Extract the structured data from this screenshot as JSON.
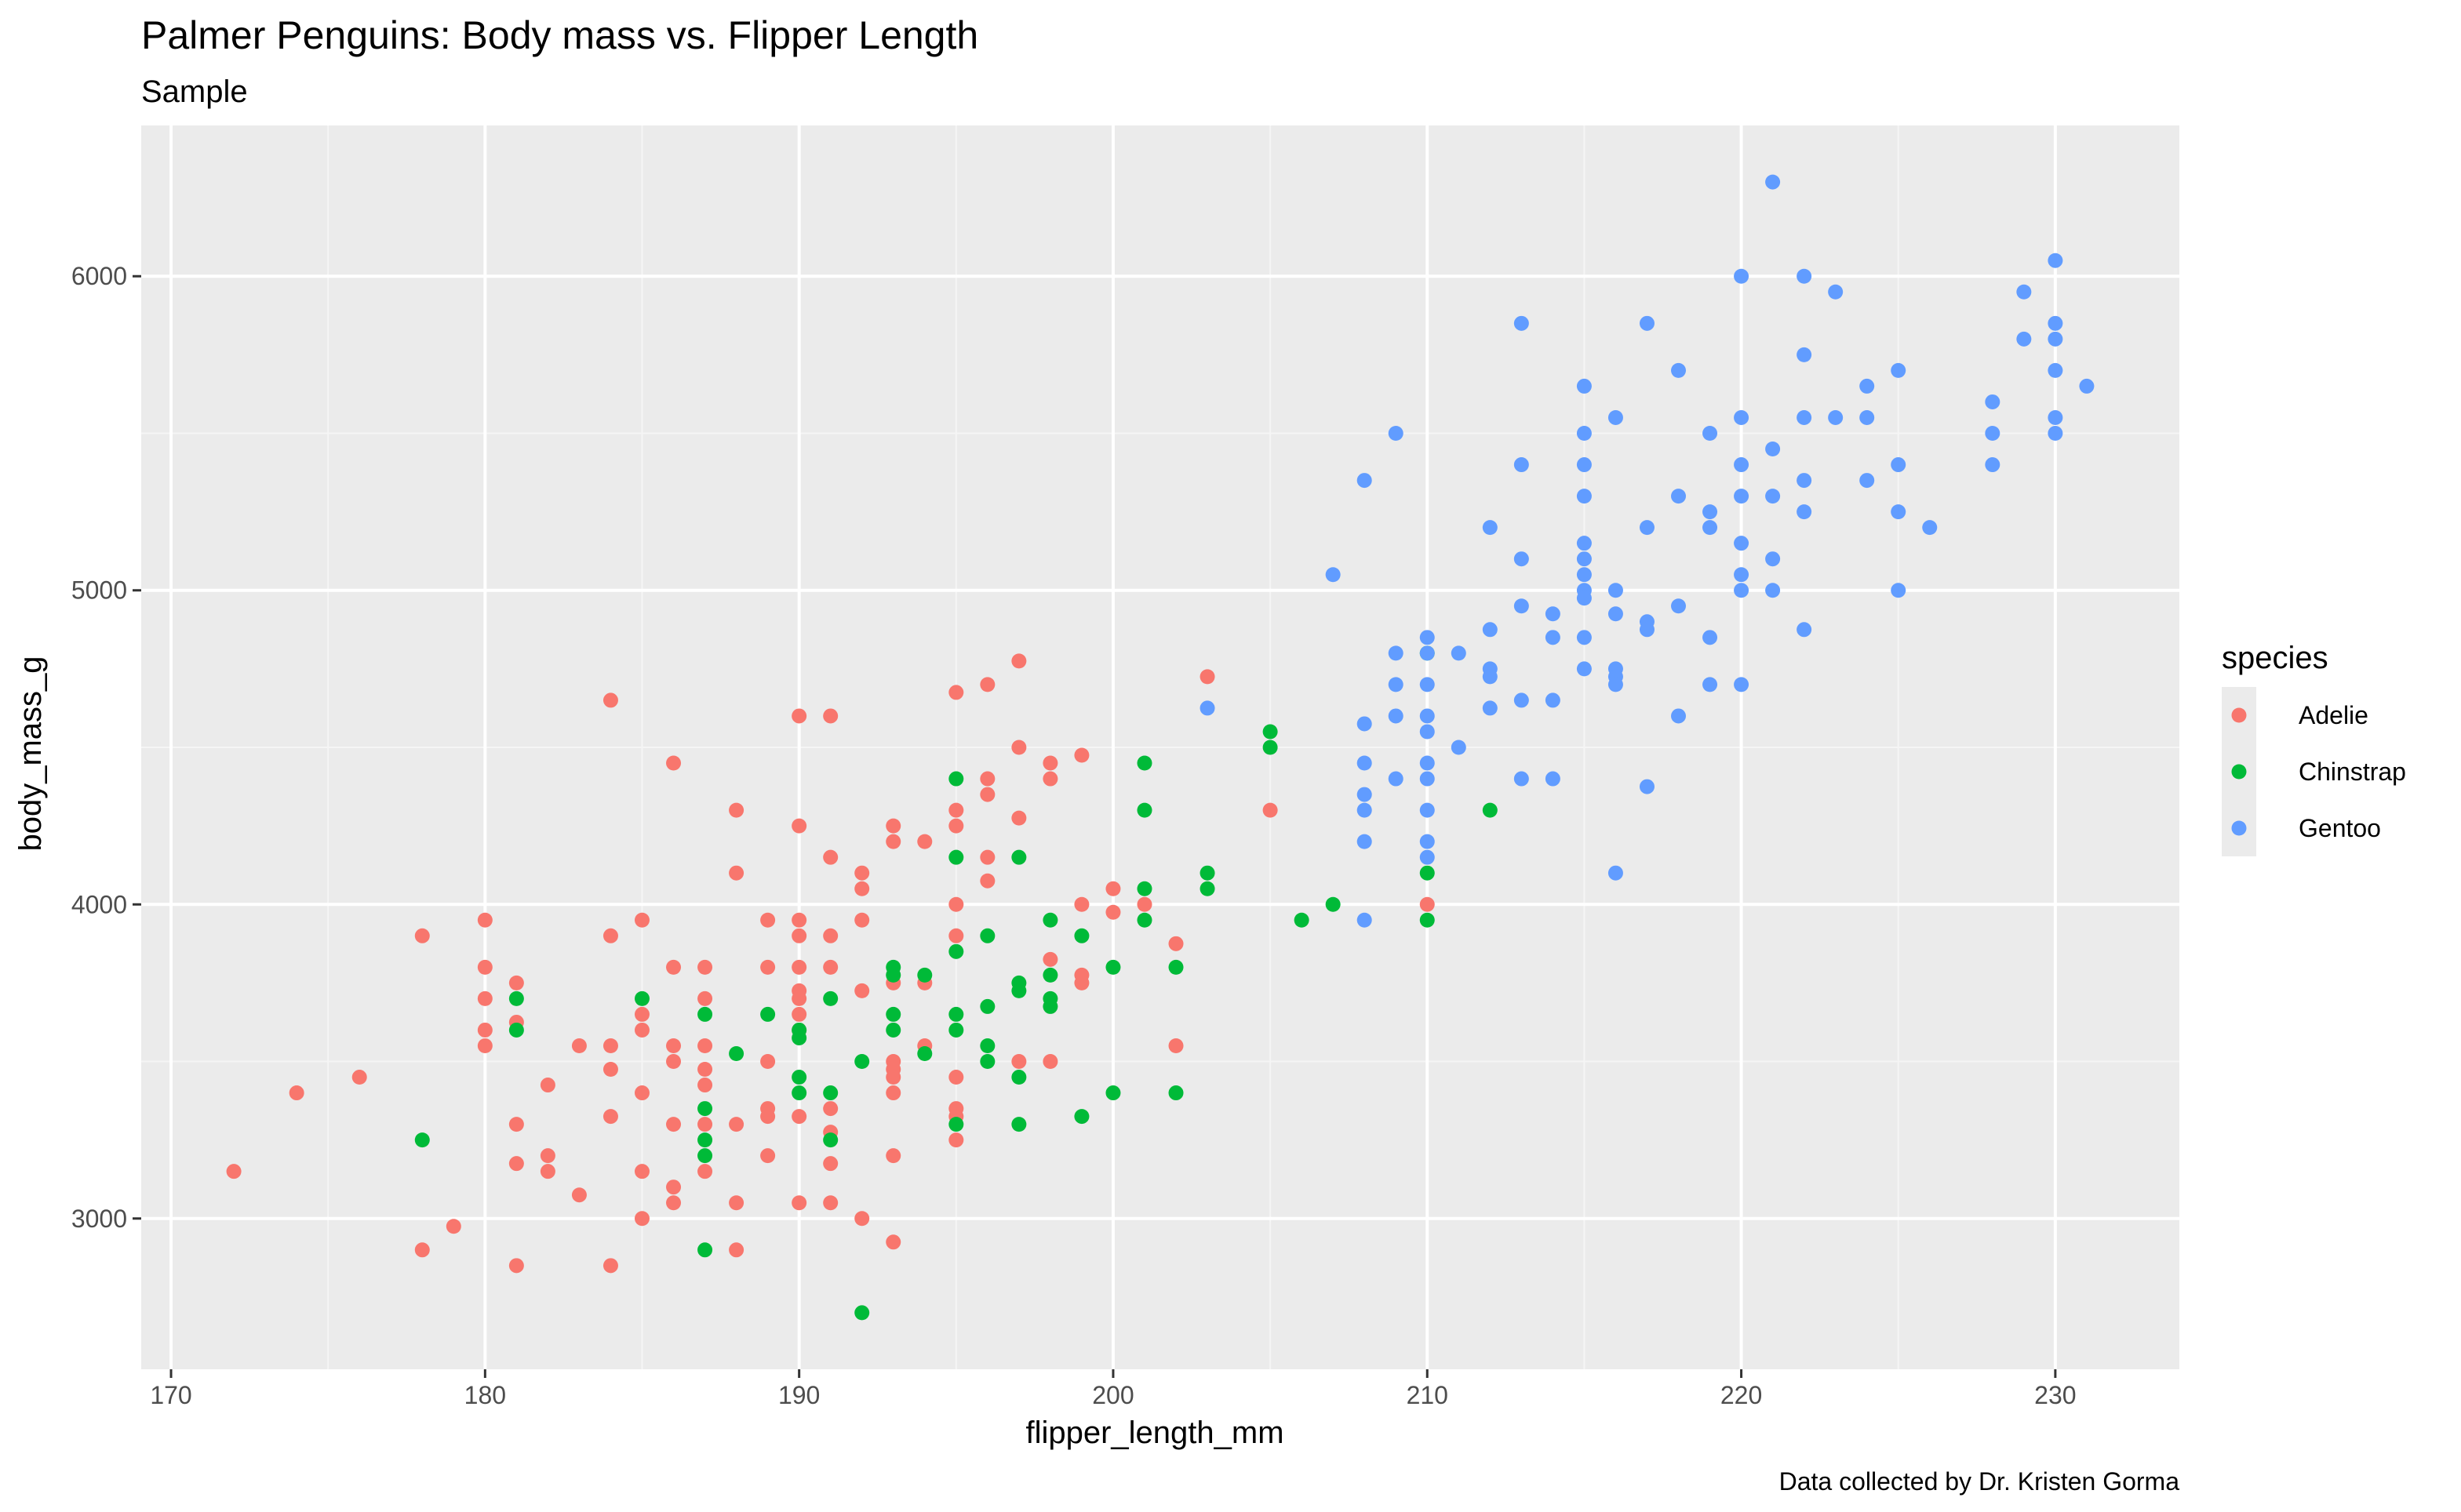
{
  "chart_data": {
    "type": "scatter",
    "title": "Palmer Penguins: Body mass vs. Flipper Length",
    "subtitle": "Sample",
    "caption": "Data collected by Dr. Kristen Gorma",
    "xlabel": "flipper_length_mm",
    "ylabel": "body_mass_g",
    "xlim": [
      169.05,
      233.95
    ],
    "ylim": [
      2520,
      6480
    ],
    "x_ticks": [
      170,
      180,
      190,
      200,
      210,
      220,
      230
    ],
    "y_ticks": [
      3000,
      4000,
      5000,
      6000
    ],
    "grid": true,
    "legend": {
      "title": "species",
      "position": "right",
      "entries": [
        "Adelie",
        "Chinstrap",
        "Gentoo"
      ]
    },
    "colors": {
      "Adelie": "#F8766D",
      "Chinstrap": "#00BA38",
      "Gentoo": "#619CFF",
      "panel_background": "#EBEBEB",
      "grid_major": "#FFFFFF",
      "grid_minor": "#F5F5F5"
    },
    "series": [
      {
        "name": "Adelie",
        "points": [
          [
            172,
            3150
          ],
          [
            174,
            3400
          ],
          [
            176,
            3450
          ],
          [
            178,
            3900
          ],
          [
            178,
            2900
          ],
          [
            179,
            2975
          ],
          [
            180,
            3950
          ],
          [
            180,
            3800
          ],
          [
            180,
            3700
          ],
          [
            180,
            3600
          ],
          [
            180,
            3550
          ],
          [
            181,
            3750
          ],
          [
            181,
            3625
          ],
          [
            181,
            3300
          ],
          [
            181,
            3175
          ],
          [
            181,
            2850
          ],
          [
            182,
            3425
          ],
          [
            182,
            3200
          ],
          [
            182,
            3150
          ],
          [
            183,
            3550
          ],
          [
            183,
            3075
          ],
          [
            184,
            4650
          ],
          [
            184,
            3900
          ],
          [
            184,
            3550
          ],
          [
            184,
            3475
          ],
          [
            184,
            3325
          ],
          [
            184,
            2850
          ],
          [
            185,
            3950
          ],
          [
            185,
            3650
          ],
          [
            185,
            3600
          ],
          [
            185,
            3400
          ],
          [
            185,
            3150
          ],
          [
            185,
            3000
          ],
          [
            186,
            4450
          ],
          [
            186,
            3800
          ],
          [
            186,
            3550
          ],
          [
            186,
            3500
          ],
          [
            186,
            3300
          ],
          [
            186,
            3100
          ],
          [
            186,
            3050
          ],
          [
            187,
            3800
          ],
          [
            187,
            3700
          ],
          [
            187,
            3550
          ],
          [
            187,
            3475
          ],
          [
            187,
            3425
          ],
          [
            187,
            3300
          ],
          [
            187,
            3150
          ],
          [
            188,
            4300
          ],
          [
            188,
            4100
          ],
          [
            188,
            3300
          ],
          [
            188,
            3050
          ],
          [
            188,
            2900
          ],
          [
            189,
            3950
          ],
          [
            189,
            3800
          ],
          [
            189,
            3500
          ],
          [
            189,
            3350
          ],
          [
            189,
            3325
          ],
          [
            189,
            3200
          ],
          [
            190,
            4600
          ],
          [
            190,
            4250
          ],
          [
            190,
            3950
          ],
          [
            190,
            3900
          ],
          [
            190,
            3800
          ],
          [
            190,
            3725
          ],
          [
            190,
            3700
          ],
          [
            190,
            3650
          ],
          [
            190,
            3600
          ],
          [
            190,
            3325
          ],
          [
            190,
            3050
          ],
          [
            191,
            4600
          ],
          [
            191,
            4150
          ],
          [
            191,
            3900
          ],
          [
            191,
            3800
          ],
          [
            191,
            3350
          ],
          [
            191,
            3275
          ],
          [
            191,
            3175
          ],
          [
            191,
            3050
          ],
          [
            192,
            4100
          ],
          [
            192,
            4050
          ],
          [
            192,
            3950
          ],
          [
            192,
            3725
          ],
          [
            192,
            3000
          ],
          [
            193,
            4250
          ],
          [
            193,
            4200
          ],
          [
            193,
            3750
          ],
          [
            193,
            3500
          ],
          [
            193,
            3475
          ],
          [
            193,
            3450
          ],
          [
            193,
            3400
          ],
          [
            193,
            3200
          ],
          [
            193,
            2925
          ],
          [
            194,
            4200
          ],
          [
            194,
            3750
          ],
          [
            194,
            3550
          ],
          [
            195,
            4675
          ],
          [
            195,
            4300
          ],
          [
            195,
            4250
          ],
          [
            195,
            4000
          ],
          [
            195,
            3900
          ],
          [
            195,
            3450
          ],
          [
            195,
            3350
          ],
          [
            195,
            3325
          ],
          [
            195,
            3250
          ],
          [
            196,
            4700
          ],
          [
            196,
            4400
          ],
          [
            196,
            4350
          ],
          [
            196,
            4150
          ],
          [
            196,
            4075
          ],
          [
            197,
            4775
          ],
          [
            197,
            4500
          ],
          [
            197,
            4275
          ],
          [
            197,
            3500
          ],
          [
            198,
            4450
          ],
          [
            198,
            4400
          ],
          [
            198,
            3825
          ],
          [
            198,
            3500
          ],
          [
            199,
            4475
          ],
          [
            199,
            4000
          ],
          [
            199,
            3775
          ],
          [
            199,
            3750
          ],
          [
            200,
            4050
          ],
          [
            200,
            3975
          ],
          [
            201,
            4000
          ],
          [
            202,
            3875
          ],
          [
            202,
            3550
          ],
          [
            203,
            4725
          ],
          [
            205,
            4300
          ],
          [
            210,
            4000
          ]
        ]
      },
      {
        "name": "Chinstrap",
        "points": [
          [
            178,
            3250
          ],
          [
            181,
            3700
          ],
          [
            181,
            3600
          ],
          [
            185,
            3700
          ],
          [
            187,
            3650
          ],
          [
            187,
            3350
          ],
          [
            187,
            3250
          ],
          [
            187,
            3200
          ],
          [
            187,
            2900
          ],
          [
            188,
            3525
          ],
          [
            189,
            3650
          ],
          [
            190,
            3600
          ],
          [
            190,
            3575
          ],
          [
            190,
            3450
          ],
          [
            190,
            3400
          ],
          [
            191,
            3700
          ],
          [
            191,
            3400
          ],
          [
            191,
            3250
          ],
          [
            192,
            3500
          ],
          [
            192,
            2700
          ],
          [
            193,
            3800
          ],
          [
            193,
            3775
          ],
          [
            193,
            3650
          ],
          [
            193,
            3600
          ],
          [
            194,
            3775
          ],
          [
            194,
            3525
          ],
          [
            195,
            4400
          ],
          [
            195,
            4150
          ],
          [
            195,
            3850
          ],
          [
            195,
            3650
          ],
          [
            195,
            3600
          ],
          [
            195,
            3300
          ],
          [
            196,
            3900
          ],
          [
            196,
            3675
          ],
          [
            196,
            3550
          ],
          [
            196,
            3500
          ],
          [
            197,
            4150
          ],
          [
            197,
            3750
          ],
          [
            197,
            3725
          ],
          [
            197,
            3450
          ],
          [
            197,
            3300
          ],
          [
            198,
            3950
          ],
          [
            198,
            3775
          ],
          [
            198,
            3700
          ],
          [
            198,
            3675
          ],
          [
            199,
            3900
          ],
          [
            199,
            3325
          ],
          [
            200,
            3800
          ],
          [
            200,
            3400
          ],
          [
            201,
            4450
          ],
          [
            201,
            4300
          ],
          [
            201,
            4050
          ],
          [
            201,
            3950
          ],
          [
            202,
            3800
          ],
          [
            202,
            3400
          ],
          [
            203,
            4100
          ],
          [
            203,
            4050
          ],
          [
            205,
            4550
          ],
          [
            205,
            4500
          ],
          [
            206,
            3950
          ],
          [
            207,
            4000
          ],
          [
            210,
            4800
          ],
          [
            210,
            4100
          ],
          [
            210,
            3950
          ],
          [
            212,
            4300
          ]
        ]
      },
      {
        "name": "Gentoo",
        "points": [
          [
            203,
            4625
          ],
          [
            207,
            5050
          ],
          [
            208,
            5350
          ],
          [
            208,
            4575
          ],
          [
            208,
            4450
          ],
          [
            208,
            4350
          ],
          [
            208,
            4300
          ],
          [
            208,
            4200
          ],
          [
            208,
            3950
          ],
          [
            209,
            5500
          ],
          [
            209,
            4800
          ],
          [
            209,
            4700
          ],
          [
            209,
            4600
          ],
          [
            209,
            4400
          ],
          [
            210,
            4850
          ],
          [
            210,
            4800
          ],
          [
            210,
            4700
          ],
          [
            210,
            4600
          ],
          [
            210,
            4550
          ],
          [
            210,
            4450
          ],
          [
            210,
            4400
          ],
          [
            210,
            4300
          ],
          [
            210,
            4200
          ],
          [
            210,
            4150
          ],
          [
            211,
            4800
          ],
          [
            211,
            4500
          ],
          [
            212,
            5200
          ],
          [
            212,
            4875
          ],
          [
            212,
            4750
          ],
          [
            212,
            4725
          ],
          [
            212,
            4625
          ],
          [
            213,
            5850
          ],
          [
            213,
            5400
          ],
          [
            213,
            5100
          ],
          [
            213,
            4950
          ],
          [
            213,
            4650
          ],
          [
            213,
            4400
          ],
          [
            214,
            4925
          ],
          [
            214,
            4850
          ],
          [
            214,
            4650
          ],
          [
            214,
            4400
          ],
          [
            215,
            5650
          ],
          [
            215,
            5500
          ],
          [
            215,
            5400
          ],
          [
            215,
            5300
          ],
          [
            215,
            5150
          ],
          [
            215,
            5100
          ],
          [
            215,
            5050
          ],
          [
            215,
            5000
          ],
          [
            215,
            4975
          ],
          [
            215,
            4850
          ],
          [
            215,
            4750
          ],
          [
            216,
            5550
          ],
          [
            216,
            5000
          ],
          [
            216,
            4925
          ],
          [
            216,
            4750
          ],
          [
            216,
            4725
          ],
          [
            216,
            4700
          ],
          [
            216,
            4100
          ],
          [
            217,
            5850
          ],
          [
            217,
            5200
          ],
          [
            217,
            4900
          ],
          [
            217,
            4875
          ],
          [
            217,
            4375
          ],
          [
            218,
            5700
          ],
          [
            218,
            5300
          ],
          [
            218,
            4950
          ],
          [
            218,
            4600
          ],
          [
            219,
            5500
          ],
          [
            219,
            5250
          ],
          [
            219,
            5200
          ],
          [
            219,
            4850
          ],
          [
            219,
            4700
          ],
          [
            220,
            6000
          ],
          [
            220,
            5550
          ],
          [
            220,
            5400
          ],
          [
            220,
            5300
          ],
          [
            220,
            5150
          ],
          [
            220,
            5050
          ],
          [
            220,
            5000
          ],
          [
            220,
            4700
          ],
          [
            221,
            6300
          ],
          [
            221,
            5450
          ],
          [
            221,
            5300
          ],
          [
            221,
            5100
          ],
          [
            221,
            5000
          ],
          [
            222,
            6000
          ],
          [
            222,
            5750
          ],
          [
            222,
            5550
          ],
          [
            222,
            5350
          ],
          [
            222,
            5250
          ],
          [
            222,
            4875
          ],
          [
            223,
            5950
          ],
          [
            223,
            5550
          ],
          [
            224,
            5650
          ],
          [
            224,
            5550
          ],
          [
            224,
            5350
          ],
          [
            225,
            5700
          ],
          [
            225,
            5400
          ],
          [
            225,
            5250
          ],
          [
            225,
            5000
          ],
          [
            226,
            5200
          ],
          [
            228,
            5600
          ],
          [
            228,
            5500
          ],
          [
            228,
            5400
          ],
          [
            229,
            5950
          ],
          [
            229,
            5800
          ],
          [
            230,
            6050
          ],
          [
            230,
            5850
          ],
          [
            230,
            5800
          ],
          [
            230,
            5700
          ],
          [
            230,
            5550
          ],
          [
            230,
            5500
          ],
          [
            231,
            5650
          ]
        ]
      }
    ]
  }
}
